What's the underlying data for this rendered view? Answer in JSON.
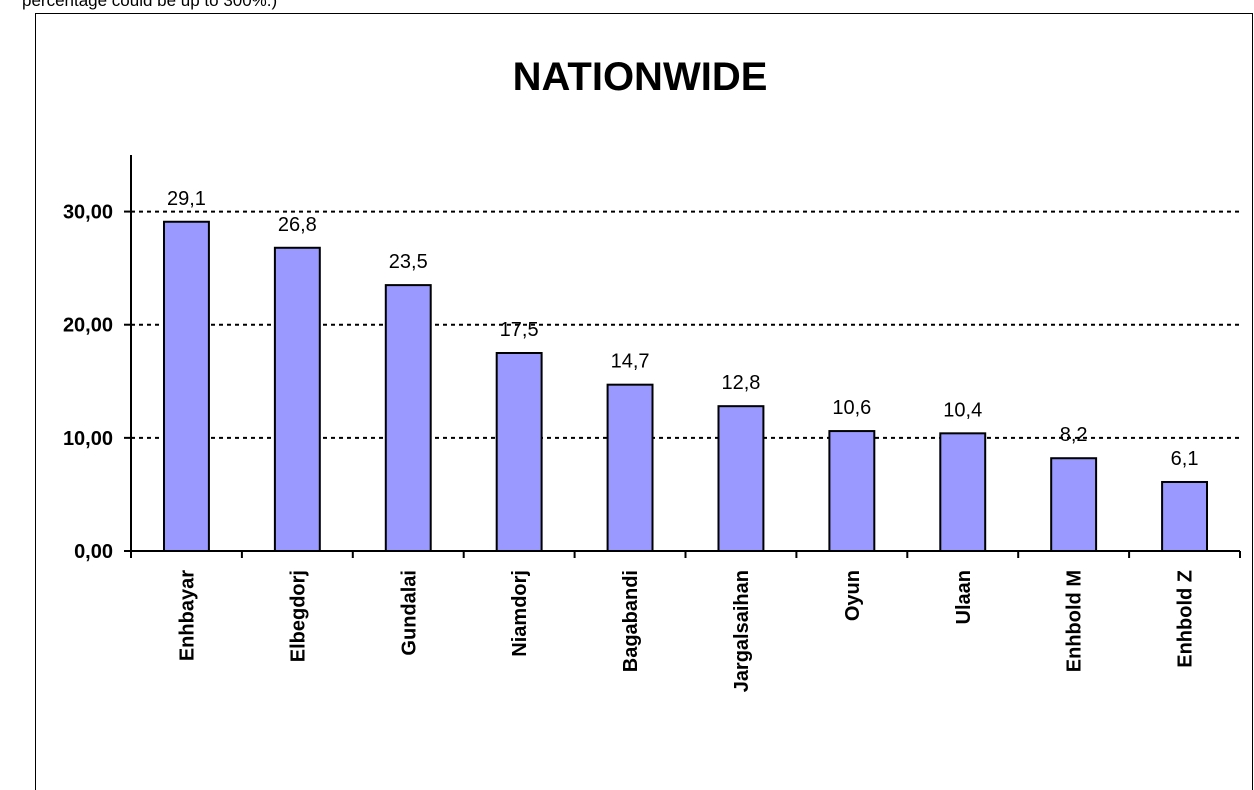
{
  "top_note": "percentage could be up to 300%.)",
  "colors": {
    "bar_fill": "#9999ff",
    "bar_stroke": "#000000",
    "grid": "#000000"
  },
  "chart_data": {
    "type": "bar",
    "title": "NATIONWIDE",
    "xlabel": "",
    "ylabel": "",
    "categories": [
      "Enhbayar",
      "Elbegdorj",
      "Gundalai",
      "Niamdorj",
      "Bagabandi",
      "Jargalsaihan",
      "Oyun",
      "Ulaan",
      "Enhbold M",
      "Enhbold Z"
    ],
    "values": [
      29.1,
      26.8,
      23.5,
      17.5,
      14.7,
      12.8,
      10.6,
      10.4,
      8.2,
      6.1
    ],
    "data_labels": [
      "29,1",
      "26,8",
      "23,5",
      "17,5",
      "14,7",
      "12,8",
      "10,6",
      "10,4",
      "8,2",
      "6,1"
    ],
    "y_ticks": [
      0,
      10,
      20,
      30
    ],
    "y_tick_labels": [
      "0,00",
      "10,00",
      "20,00",
      "30,00"
    ],
    "ylim": [
      0,
      35
    ],
    "grid": "dotted horizontal at major ticks",
    "legend": "none"
  }
}
